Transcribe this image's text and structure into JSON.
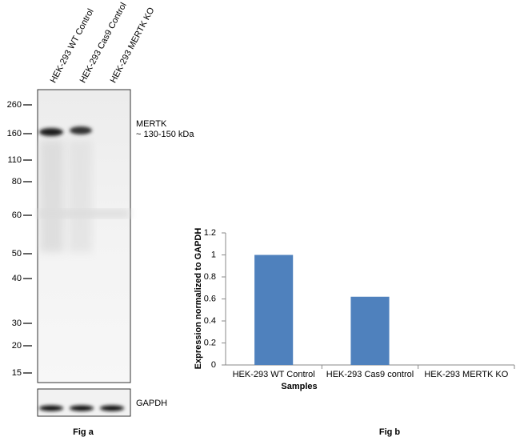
{
  "western_blot": {
    "lanes": [
      "HEK-293 WT Control",
      "HEK-293 Cas9 Control",
      "HEK-293 MERTK KO"
    ],
    "markers": [
      260,
      160,
      110,
      80,
      60,
      50,
      40,
      30,
      20,
      15
    ],
    "target": "MERTK",
    "target_size": "~ 130-150 kDa",
    "loading_control": "GAPDH",
    "caption": "Fig a"
  },
  "chart_data": {
    "type": "bar",
    "caption": "Fig b",
    "categories": [
      "HEK-293 WT Control",
      "HEK-293 Cas9 control",
      "HEK-293 MERTK KO"
    ],
    "values": [
      1,
      0.62,
      0
    ],
    "color": "#4f81bd",
    "xlabel": "Samples",
    "ylabel": "Expression  normalized to GAPDH",
    "ylim": [
      0,
      1.2
    ],
    "yticks": [
      0,
      0.2,
      0.4,
      0.6,
      0.8,
      1,
      1.2
    ],
    "grid": false
  }
}
